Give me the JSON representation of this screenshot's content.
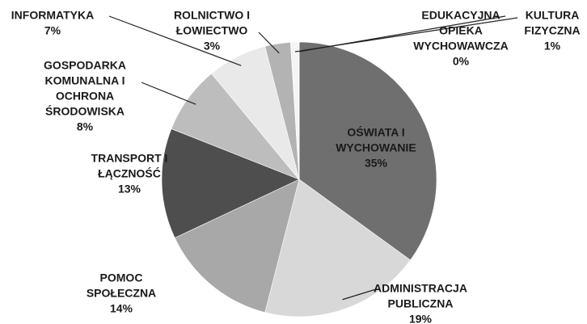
{
  "chart_data": {
    "type": "pie",
    "labels": [
      [
        "OŚWIATA I",
        "WYCHOWANIE"
      ],
      [
        "ADMINISTRACJA",
        "PUBLICZNA"
      ],
      [
        "POMOC",
        "SPOŁECZNA"
      ],
      [
        "TRANSPORT I",
        "ŁĄCZNOŚĆ"
      ],
      [
        "GOSPODARKA",
        "KOMUNALNA I",
        "OCHRONA",
        "ŚRODOWISKA"
      ],
      [
        "INFORMATYKA"
      ],
      [
        "ROLNICTWO I",
        "ŁOWIECTWO"
      ],
      [
        "KULTURA",
        "FIZYCZNA"
      ],
      [
        "EDUKACYJNA",
        "OPIEKA",
        "WYCHOWAWCZA"
      ]
    ],
    "values": [
      35,
      19,
      14,
      13,
      8,
      7,
      3,
      1,
      0
    ],
    "value_labels": [
      "35%",
      "19%",
      "14%",
      "13%",
      "8%",
      "7%",
      "3%",
      "1%",
      "0%"
    ],
    "colors": [
      "#6f6f6f",
      "#d8d8d8",
      "#a8a8a8",
      "#4e4e4e",
      "#bdbdbd",
      "#e9e9e9",
      "#b3b3b3",
      "#f5f5f5",
      "#8a8a8a"
    ]
  }
}
